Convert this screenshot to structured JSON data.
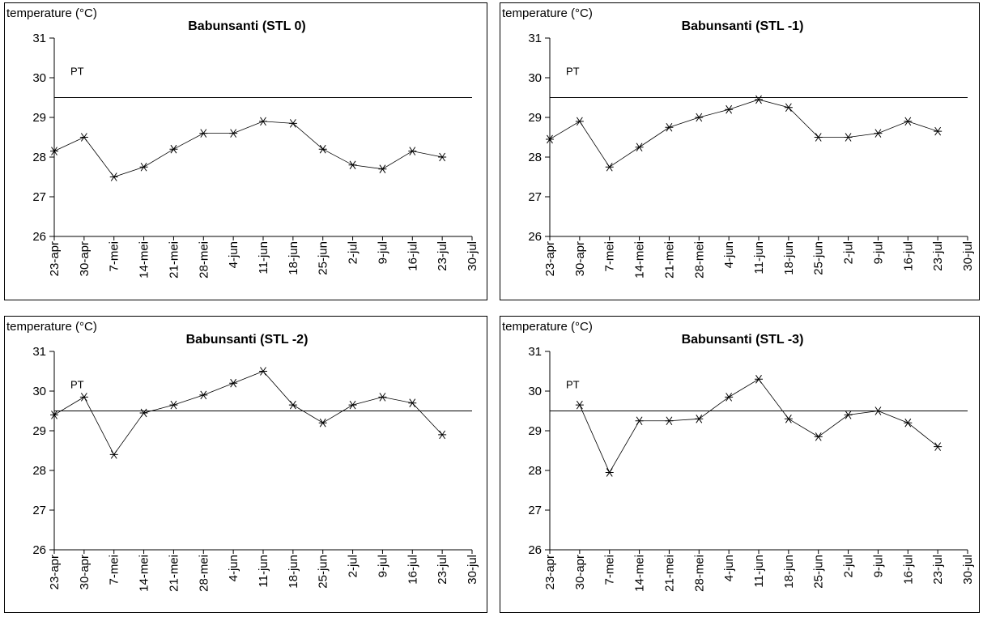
{
  "chart_data": [
    {
      "type": "line",
      "title": "Babunsanti (STL 0)",
      "y_label": "temperature (°C)",
      "categories": [
        "23-apr",
        "30-apr",
        "7-mei",
        "14-mei",
        "21-mei",
        "28-mei",
        "4-jun",
        "11-jun",
        "18-jun",
        "25-jun",
        "2-jul",
        "9-jul",
        "16-jul",
        "23-jul",
        "30-jul"
      ],
      "values": [
        28.15,
        28.5,
        27.5,
        27.75,
        28.2,
        28.6,
        28.6,
        28.9,
        28.85,
        28.2,
        27.8,
        27.7,
        28.15,
        28.0,
        null
      ],
      "color": "#000000",
      "ylim": [
        26,
        31
      ],
      "yticks": [
        26,
        27,
        28,
        29,
        30,
        31
      ],
      "reference_line": {
        "label": "PT",
        "value": 29.5
      }
    },
    {
      "type": "line",
      "title": "Babunsanti (STL -1)",
      "y_label": "temperature (°C)",
      "categories": [
        "23-apr",
        "30-apr",
        "7-mei",
        "14-mei",
        "21-mei",
        "28-mei",
        "4-jun",
        "11-jun",
        "18-jun",
        "25-jun",
        "2-jul",
        "9-jul",
        "16-jul",
        "23-jul",
        "30-jul"
      ],
      "values": [
        28.45,
        28.9,
        27.75,
        28.25,
        28.75,
        29.0,
        29.2,
        29.45,
        29.25,
        28.5,
        28.5,
        28.6,
        28.9,
        28.65,
        null
      ],
      "color": "#000000",
      "ylim": [
        26,
        31
      ],
      "yticks": [
        26,
        27,
        28,
        29,
        30,
        31
      ],
      "reference_line": {
        "label": "PT",
        "value": 29.5
      }
    },
    {
      "type": "line",
      "title": "Babunsanti (STL -2)",
      "y_label": "temperature (°C)",
      "categories": [
        "23-apr",
        "30-apr",
        "7-mei",
        "14-mei",
        "21-mei",
        "28-mei",
        "4-jun",
        "11-jun",
        "18-jun",
        "25-jun",
        "2-jul",
        "9-jul",
        "16-jul",
        "23-jul",
        "30-jul"
      ],
      "values": [
        29.4,
        29.85,
        28.4,
        29.45,
        29.65,
        29.9,
        30.2,
        30.5,
        29.65,
        29.2,
        29.65,
        29.85,
        29.7,
        28.9,
        null
      ],
      "color": "#000000",
      "ylim": [
        26,
        31
      ],
      "yticks": [
        26,
        27,
        28,
        29,
        30,
        31
      ],
      "reference_line": {
        "label": "PT",
        "value": 29.5
      }
    },
    {
      "type": "line",
      "title": "Babunsanti (STL -3)",
      "y_label": "temperature (°C)",
      "categories": [
        "23-apr",
        "30-apr",
        "7-mei",
        "14-mei",
        "21-mei",
        "28-mei",
        "4-jun",
        "11-jun",
        "18-jun",
        "25-jun",
        "2-jul",
        "9-jul",
        "16-jul",
        "23-jul",
        "30-jul"
      ],
      "values": [
        null,
        29.65,
        27.95,
        29.25,
        29.25,
        29.3,
        29.85,
        30.3,
        29.3,
        28.85,
        29.4,
        29.5,
        29.2,
        28.6,
        null
      ],
      "color": "#000000",
      "ylim": [
        26,
        31
      ],
      "yticks": [
        26,
        27,
        28,
        29,
        30,
        31
      ],
      "reference_line": {
        "label": "PT",
        "value": 29.5
      }
    }
  ]
}
